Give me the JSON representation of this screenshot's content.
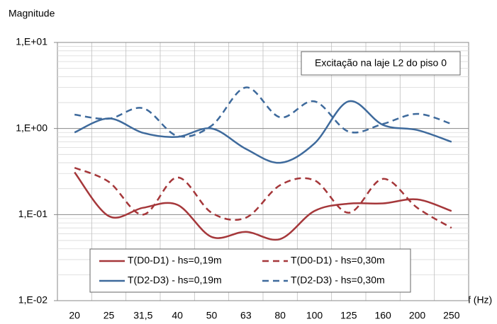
{
  "chart_data": {
    "type": "line",
    "y_label": "Magnitude",
    "x_label": "f (Hz)",
    "annotation": "Excitação na laje L2 do piso 0",
    "categories": [
      "20",
      "25",
      "31,5",
      "40",
      "50",
      "63",
      "80",
      "100",
      "125",
      "160",
      "200",
      "250"
    ],
    "log_scale": true,
    "grid": true,
    "smooth": true,
    "ylim": [
      0.01,
      10
    ],
    "yticks": [
      {
        "value": 0.01,
        "label": "1,E-02"
      },
      {
        "value": 0.1,
        "label": "1,E-01"
      },
      {
        "value": 1,
        "label": "1,E+00"
      },
      {
        "value": 10,
        "label": "1,E+01"
      }
    ],
    "series": [
      {
        "name": "T(D0-D1) - hs=0,19m",
        "color": "#a5373a",
        "dash": false,
        "values": [
          0.31,
          0.096,
          0.12,
          0.13,
          0.055,
          0.063,
          0.052,
          0.11,
          0.134,
          0.135,
          0.15,
          0.11
        ]
      },
      {
        "name": "T(D0-D1) - hs=0,30m",
        "color": "#a5373a",
        "dash": true,
        "values": [
          0.35,
          0.24,
          0.1,
          0.27,
          0.105,
          0.092,
          0.22,
          0.25,
          0.105,
          0.26,
          0.12,
          0.07
        ]
      },
      {
        "name": "T(D2-D3) - hs=0,19m",
        "color": "#3e6a9c",
        "dash": false,
        "values": [
          0.9,
          1.31,
          0.89,
          0.8,
          1.0,
          0.58,
          0.4,
          0.67,
          2.07,
          1.1,
          0.96,
          0.7
        ]
      },
      {
        "name": "T(D2-D3) - hs=0,30m",
        "color": "#3e6a9c",
        "dash": true,
        "values": [
          1.45,
          1.3,
          1.72,
          0.82,
          1.08,
          3.0,
          1.35,
          2.07,
          0.92,
          1.13,
          1.48,
          1.13
        ]
      }
    ]
  }
}
